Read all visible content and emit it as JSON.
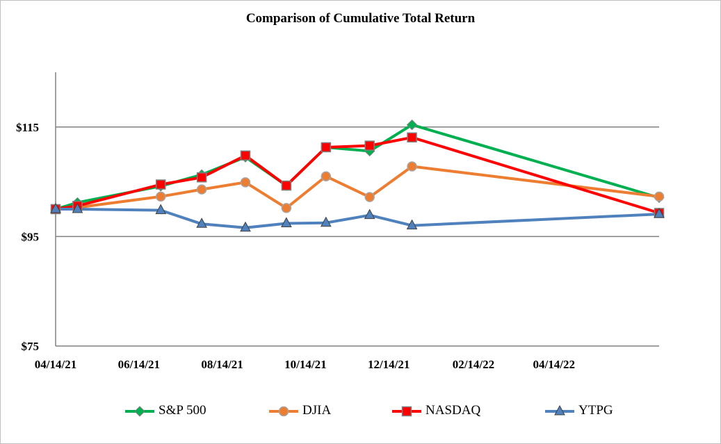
{
  "chart_data": {
    "type": "line",
    "title": "Comparison of Cumulative Total Return",
    "xlabel": "",
    "ylabel": "",
    "x_ticks": [
      "04/14/21",
      "06/14/21",
      "08/14/21",
      "10/14/21",
      "12/14/21",
      "02/14/22",
      "04/14/22"
    ],
    "y_ticks": [
      "$75",
      "$95",
      "$115"
    ],
    "ylim": [
      75,
      125
    ],
    "xlim": [
      "2021-04-14",
      "2022-06-30"
    ],
    "grid": "horizontal",
    "legend_position": "bottom",
    "series": [
      {
        "name": "S&P 500",
        "color": "#00b050",
        "marker": "diamond",
        "points": [
          {
            "x": "2021-04-14",
            "y": 100
          },
          {
            "x": "2021-04-30",
            "y": 101.2
          },
          {
            "x": "2021-06-30",
            "y": 104.2
          },
          {
            "x": "2021-07-30",
            "y": 106.3
          },
          {
            "x": "2021-08-31",
            "y": 109.5
          },
          {
            "x": "2021-09-30",
            "y": 104.3
          },
          {
            "x": "2021-10-29",
            "y": 111.3
          },
          {
            "x": "2021-11-30",
            "y": 110.6
          },
          {
            "x": "2021-12-31",
            "y": 115.4
          },
          {
            "x": "2022-06-30",
            "y": 102.1
          }
        ]
      },
      {
        "name": "DJIA",
        "color": "#ed7d31",
        "marker": "circle",
        "points": [
          {
            "x": "2021-04-14",
            "y": 100
          },
          {
            "x": "2021-04-30",
            "y": 100.3
          },
          {
            "x": "2021-06-30",
            "y": 102.3
          },
          {
            "x": "2021-07-30",
            "y": 103.6
          },
          {
            "x": "2021-08-31",
            "y": 104.9
          },
          {
            "x": "2021-09-30",
            "y": 100.2
          },
          {
            "x": "2021-10-29",
            "y": 106.0
          },
          {
            "x": "2021-11-30",
            "y": 102.2
          },
          {
            "x": "2021-12-31",
            "y": 107.8
          },
          {
            "x": "2022-06-30",
            "y": 102.3
          }
        ]
      },
      {
        "name": "NASDAQ",
        "color": "#ff0000",
        "marker": "square",
        "points": [
          {
            "x": "2021-04-14",
            "y": 100
          },
          {
            "x": "2021-04-30",
            "y": 100.6
          },
          {
            "x": "2021-06-30",
            "y": 104.5
          },
          {
            "x": "2021-07-30",
            "y": 105.8
          },
          {
            "x": "2021-08-31",
            "y": 109.8
          },
          {
            "x": "2021-09-30",
            "y": 104.3
          },
          {
            "x": "2021-10-29",
            "y": 111.3
          },
          {
            "x": "2021-11-30",
            "y": 111.6
          },
          {
            "x": "2021-12-31",
            "y": 113.1
          },
          {
            "x": "2022-06-30",
            "y": 99.3
          }
        ]
      },
      {
        "name": "YTPG",
        "color": "#4f81bd",
        "marker": "triangle",
        "points": [
          {
            "x": "2021-04-14",
            "y": 100
          },
          {
            "x": "2021-04-30",
            "y": 100
          },
          {
            "x": "2021-06-30",
            "y": 99.8
          },
          {
            "x": "2021-07-30",
            "y": 97.3
          },
          {
            "x": "2021-08-31",
            "y": 96.6
          },
          {
            "x": "2021-09-30",
            "y": 97.4
          },
          {
            "x": "2021-10-29",
            "y": 97.5
          },
          {
            "x": "2021-11-30",
            "y": 98.9
          },
          {
            "x": "2021-12-31",
            "y": 97.0
          },
          {
            "x": "2022-06-30",
            "y": 99.1
          }
        ]
      }
    ]
  }
}
